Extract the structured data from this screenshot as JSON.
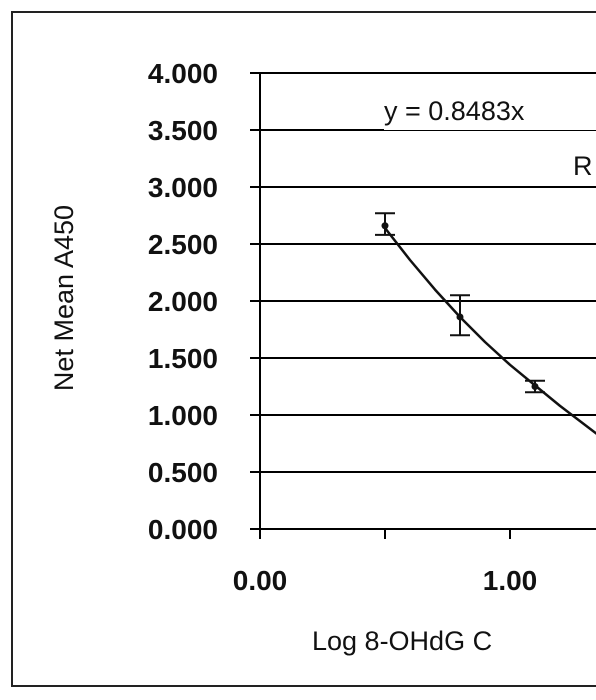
{
  "chart_data": {
    "type": "line",
    "title": "",
    "xlabel": "Log 8-OHdG C",
    "ylabel": "Net Mean A450",
    "xlim": [
      0.0,
      1.35
    ],
    "ylim": [
      0.0,
      4.0
    ],
    "x_ticks": [
      "0.00",
      "1.00"
    ],
    "x_tick_values": [
      0.0,
      1.0
    ],
    "y_ticks": [
      "4.000",
      "3.500",
      "3.000",
      "2.500",
      "2.000",
      "1.500",
      "1.000",
      "0.500",
      "0.000"
    ],
    "y_tick_values": [
      4.0,
      3.5,
      3.0,
      2.5,
      2.0,
      1.5,
      1.0,
      0.5,
      0.0
    ],
    "grid": true,
    "annotations": [
      "y = 0.8483x",
      "R"
    ],
    "series": [
      {
        "x": [
          0.5,
          0.8,
          1.1
        ],
        "values": [
          2.66,
          1.86,
          1.25
        ],
        "error_low": [
          0.08,
          0.16,
          0.05
        ],
        "error_high": [
          0.11,
          0.19,
          0.05
        ]
      }
    ],
    "trendline": {
      "x": [
        0.5,
        0.6,
        0.7,
        0.8,
        0.9,
        1.0,
        1.1,
        1.2,
        1.35
      ],
      "values": [
        2.64,
        2.36,
        2.1,
        1.86,
        1.64,
        1.44,
        1.26,
        1.08,
        0.83
      ]
    }
  }
}
